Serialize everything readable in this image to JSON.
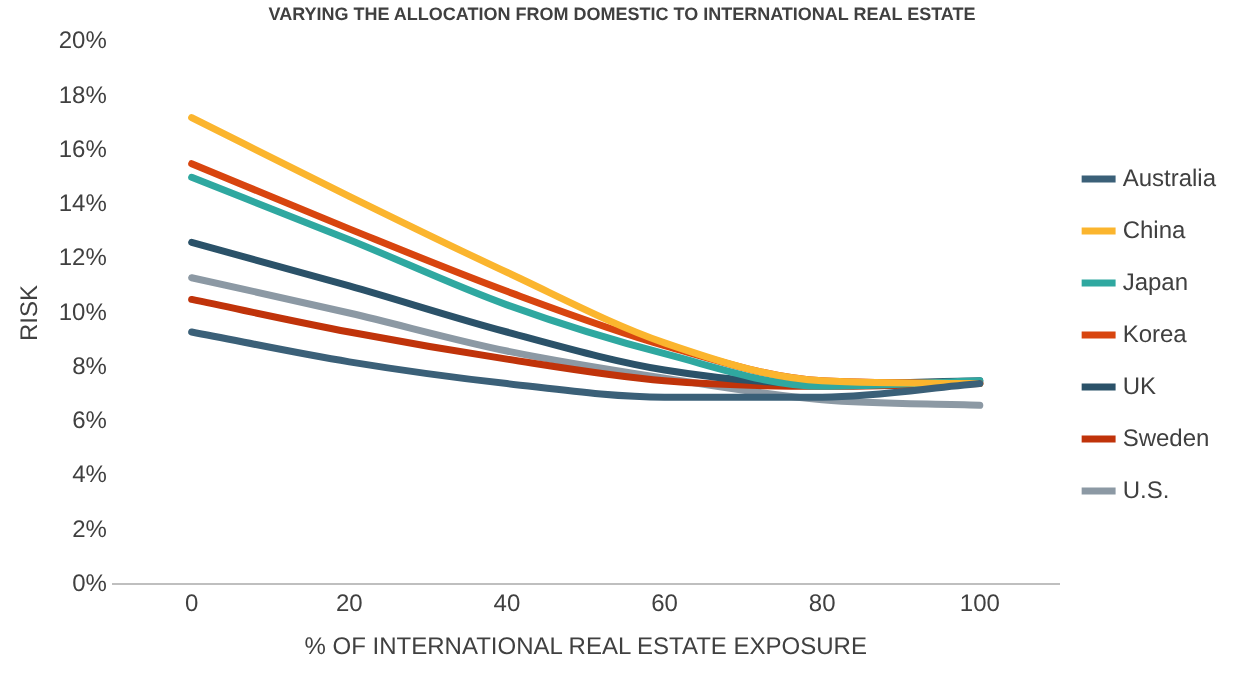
{
  "chart_data": {
    "type": "line",
    "title": "VARYING THE ALLOCATION FROM DOMESTIC TO INTERNATIONAL REAL ESTATE",
    "xlabel": "% OF INTERNATIONAL REAL ESTATE EXPOSURE",
    "ylabel": "RISK",
    "x": [
      0,
      20,
      40,
      60,
      80,
      100
    ],
    "series": [
      {
        "name": "Australia",
        "color": "#3b6078",
        "values": [
          9.3,
          8.2,
          7.4,
          6.9,
          6.9,
          7.4
        ]
      },
      {
        "name": "China",
        "color": "#fbb52e",
        "values": [
          17.2,
          14.3,
          11.5,
          8.9,
          7.5,
          7.4
        ]
      },
      {
        "name": "Japan",
        "color": "#2fa8a0",
        "values": [
          15.0,
          12.7,
          10.3,
          8.5,
          7.3,
          7.5
        ]
      },
      {
        "name": "Korea",
        "color": "#d8450f",
        "values": [
          15.5,
          13.1,
          10.8,
          8.8,
          7.5,
          7.4
        ]
      },
      {
        "name": "UK",
        "color": "#2b5269",
        "values": [
          12.6,
          11.0,
          9.3,
          7.9,
          7.4,
          7.5
        ]
      },
      {
        "name": "Sweden",
        "color": "#c0330a",
        "values": [
          10.5,
          9.3,
          8.3,
          7.5,
          7.3,
          7.4
        ]
      },
      {
        "name": "U.S.",
        "color": "#8c99a4",
        "values": [
          11.3,
          10.0,
          8.6,
          7.6,
          6.8,
          6.6
        ]
      }
    ],
    "xlim": [
      -10,
      110
    ],
    "xticks": [
      0,
      20,
      40,
      60,
      80,
      100
    ],
    "ylim": [
      0,
      20
    ],
    "yticks": [
      {
        "value": 0,
        "label": "0%"
      },
      {
        "value": 2,
        "label": "2%"
      },
      {
        "value": 4,
        "label": "4%"
      },
      {
        "value": 6,
        "label": "6%"
      },
      {
        "value": 8,
        "label": "8%"
      },
      {
        "value": 10,
        "label": "10%"
      },
      {
        "value": 12,
        "label": "12%"
      },
      {
        "value": 14,
        "label": "14%"
      },
      {
        "value": 16,
        "label": "16%"
      },
      {
        "value": 18,
        "label": "18%"
      },
      {
        "value": 20,
        "label": "20%"
      }
    ],
    "grid": false,
    "legend": "right",
    "marker": "none",
    "line_style": "solid"
  }
}
